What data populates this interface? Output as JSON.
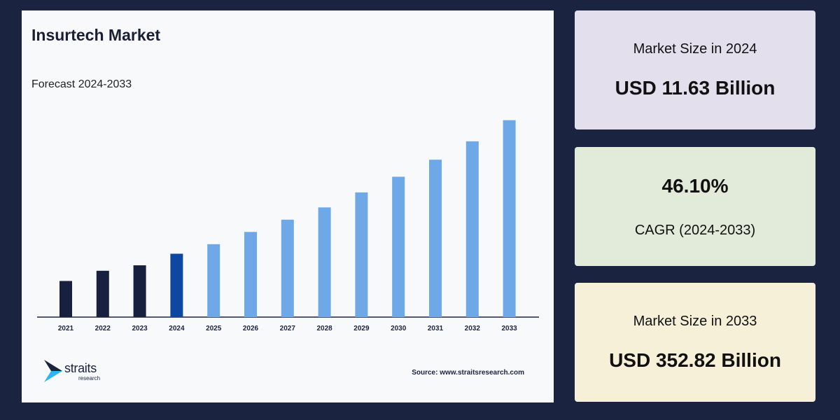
{
  "colors": {
    "background": "#1a2340",
    "bar_historic": "#17213f",
    "bar_base": "#0d47a1",
    "bar_forecast": "#6fa8e6",
    "card_2024": "#e4dfec",
    "card_cagr": "#e2ebd9",
    "card_2033": "#f5f0d7"
  },
  "chart_data": {
    "type": "bar",
    "title": "Insurtech Market",
    "subtitle": "Forecast 2024-2033",
    "categories": [
      "2021",
      "2022",
      "2023",
      "2024",
      "2025",
      "2026",
      "2027",
      "2028",
      "2029",
      "2030",
      "2031",
      "2032",
      "2033"
    ],
    "values": [
      53,
      68,
      76,
      93,
      107,
      125,
      143,
      161,
      183,
      206,
      231,
      258,
      289
    ],
    "highlight": {
      "historic": [
        "2021",
        "2022",
        "2023"
      ],
      "base": "2024"
    },
    "ylim": [
      0,
      300
    ],
    "grid": false,
    "xlabel": "",
    "ylabel": ""
  },
  "branding": {
    "logo_word": "straits",
    "logo_sub": "research",
    "source": "Source: www.straitsresearch.com"
  },
  "cards": {
    "size_2024": {
      "label": "Market Size in 2024",
      "value": "USD 11.63 Billion"
    },
    "cagr": {
      "value": "46.10%",
      "label": "CAGR (2024-2033)"
    },
    "size_2033": {
      "label": "Market Size in 2033",
      "value": "USD 352.82 Billion"
    }
  }
}
